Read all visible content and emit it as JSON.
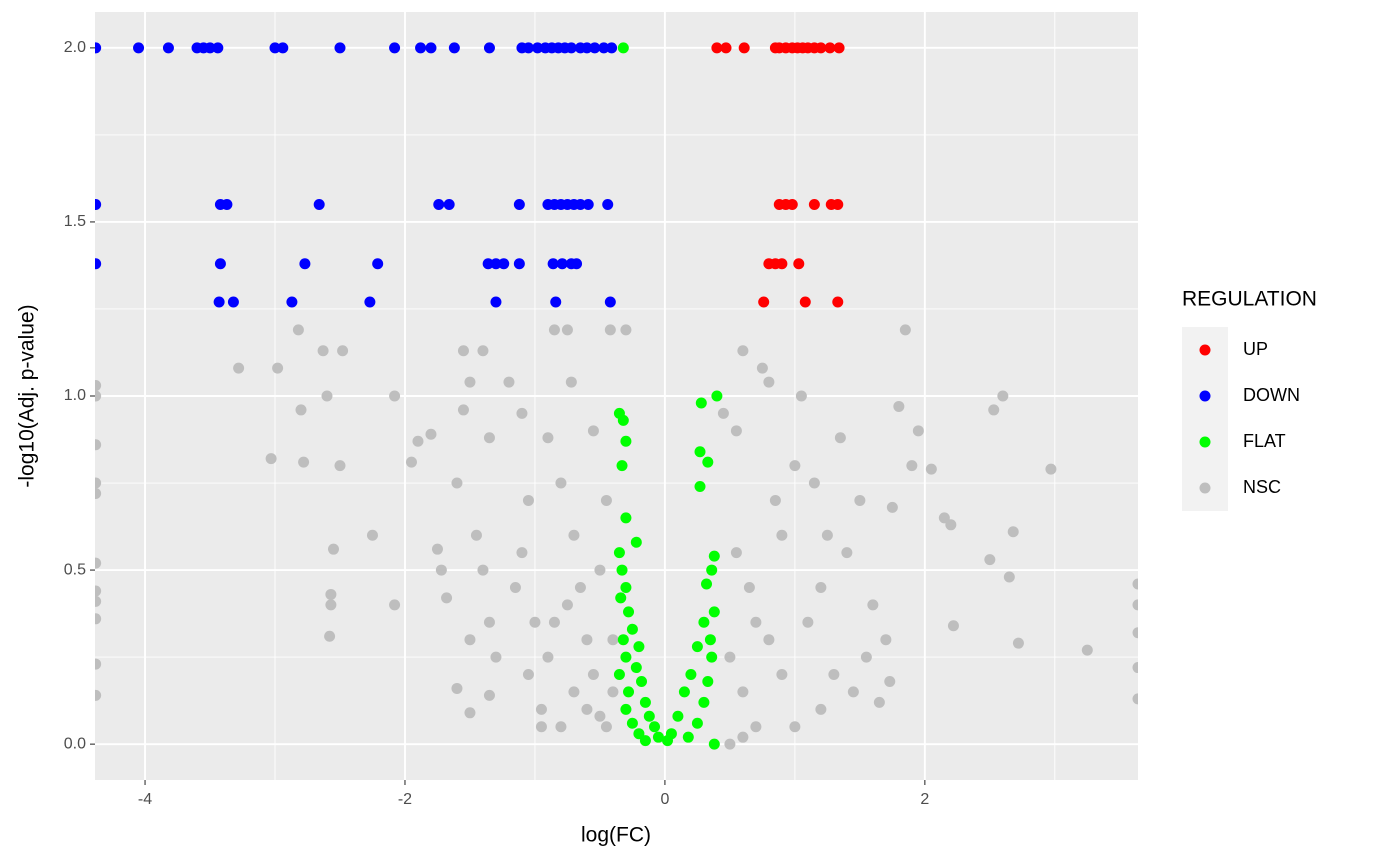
{
  "chart_data": {
    "type": "scatter",
    "x_label": "log(FC)",
    "y_label": "-log10(Adj. p-value)",
    "legend_title": "REGULATION",
    "xlim": [
      -4.385,
      3.64
    ],
    "ylim": [
      -0.103,
      2.103
    ],
    "xticks": [
      -4,
      -2,
      0,
      2
    ],
    "yticks": [
      {
        "value": 0,
        "label": "0.0"
      },
      0.5,
      {
        "value": 1,
        "label": "1.0"
      },
      1.5,
      {
        "value": 2,
        "label": "2.0"
      }
    ],
    "grid": true,
    "legend_position": "right",
    "series": [
      {
        "name": "UP",
        "color": "#ff0000",
        "x": [
          0.4,
          0.47,
          0.61,
          0.85,
          0.88,
          0.93,
          0.98,
          1.02,
          1.06,
          1.1,
          1.15,
          1.2,
          1.27,
          1.34,
          0.88,
          0.93,
          0.98,
          1.15,
          1.28,
          1.33,
          0.8,
          0.85,
          0.9,
          1.03,
          0.76,
          1.08,
          1.33
        ],
        "values": [
          2,
          2,
          2,
          2,
          2,
          2,
          2,
          2,
          2,
          2,
          2,
          2,
          2,
          2,
          1.55,
          1.55,
          1.55,
          1.55,
          1.55,
          1.55,
          1.38,
          1.38,
          1.38,
          1.38,
          1.27,
          1.27,
          1.27
        ]
      },
      {
        "name": "DOWN",
        "color": "#0000ff",
        "x": [
          -4.38,
          -4.05,
          -3.82,
          -3.6,
          -3.55,
          -3.5,
          -3.44,
          -3.0,
          -2.94,
          -2.5,
          -2.08,
          -1.88,
          -1.8,
          -1.62,
          -1.35,
          -1.1,
          -1.05,
          -0.98,
          -0.92,
          -0.87,
          -0.82,
          -0.77,
          -0.72,
          -0.65,
          -0.6,
          -0.54,
          -0.47,
          -0.41,
          -4.38,
          -3.42,
          -3.37,
          -2.66,
          -1.74,
          -1.66,
          -1.12,
          -0.9,
          -0.85,
          -0.8,
          -0.75,
          -0.7,
          -0.65,
          -0.59,
          -0.44,
          -4.38,
          -3.42,
          -2.77,
          -2.21,
          -1.36,
          -1.3,
          -1.24,
          -1.12,
          -0.86,
          -0.79,
          -0.72,
          -0.68,
          -3.43,
          -3.32,
          -2.87,
          -2.27,
          -1.3,
          -0.84,
          -0.42
        ],
        "values": [
          2,
          2,
          2,
          2,
          2,
          2,
          2,
          2,
          2,
          2,
          2,
          2,
          2,
          2,
          2,
          2,
          2,
          2,
          2,
          2,
          2,
          2,
          2,
          2,
          2,
          2,
          2,
          2,
          1.55,
          1.55,
          1.55,
          1.55,
          1.55,
          1.55,
          1.55,
          1.55,
          1.55,
          1.55,
          1.55,
          1.55,
          1.55,
          1.55,
          1.55,
          1.38,
          1.38,
          1.38,
          1.38,
          1.38,
          1.38,
          1.38,
          1.38,
          1.38,
          1.38,
          1.38,
          1.38,
          1.27,
          1.27,
          1.27,
          1.27,
          1.27,
          1.27,
          1.27
        ]
      },
      {
        "name": "FLAT",
        "color": "#00ff00",
        "x": [
          -0.32,
          -0.35,
          -0.32,
          -0.3,
          -0.33,
          -0.3,
          -0.22,
          -0.35,
          -0.33,
          -0.3,
          -0.34,
          -0.28,
          -0.25,
          -0.32,
          -0.2,
          -0.3,
          -0.22,
          -0.35,
          -0.18,
          -0.28,
          -0.15,
          -0.3,
          -0.12,
          -0.25,
          -0.08,
          -0.2,
          -0.05,
          -0.15,
          0.4,
          0.28,
          0.27,
          0.33,
          0.27,
          0.38,
          0.36,
          0.32,
          0.38,
          0.3,
          0.35,
          0.25,
          0.36,
          0.2,
          0.33,
          0.15,
          0.3,
          0.1,
          0.25,
          0.05,
          0.18,
          0.38,
          0.02
        ],
        "values": [
          2,
          0.95,
          0.93,
          0.87,
          0.8,
          0.65,
          0.58,
          0.55,
          0.5,
          0.45,
          0.42,
          0.38,
          0.33,
          0.3,
          0.28,
          0.25,
          0.22,
          0.2,
          0.18,
          0.15,
          0.12,
          0.1,
          0.08,
          0.06,
          0.05,
          0.03,
          0.02,
          0.01,
          1.0,
          0.98,
          0.84,
          0.81,
          0.74,
          0.54,
          0.5,
          0.46,
          0.38,
          0.35,
          0.3,
          0.28,
          0.25,
          0.2,
          0.18,
          0.15,
          0.12,
          0.08,
          0.06,
          0.03,
          0.02,
          0,
          0.01
        ]
      },
      {
        "name": "NSC",
        "color": "#bebebe",
        "x": [
          -4.38,
          -4.38,
          -4.38,
          -4.38,
          -4.38,
          -4.38,
          -4.38,
          -4.38,
          -4.38,
          -4.38,
          -4.38,
          -3.28,
          -3.03,
          -2.98,
          -2.82,
          -2.8,
          -2.78,
          -2.63,
          -2.6,
          -2.48,
          -2.5,
          -2.25,
          -2.55,
          -2.57,
          -2.57,
          -2.58,
          -2.08,
          -2.08,
          -1.95,
          -1.9,
          -1.8,
          -1.75,
          -1.72,
          -1.68,
          -1.6,
          -1.55,
          -1.5,
          -1.55,
          -1.4,
          -1.35,
          -1.45,
          -1.4,
          -1.35,
          -1.3,
          -1.5,
          -1.6,
          -1.35,
          -1.5,
          -1.2,
          -1.1,
          -1.05,
          -1.1,
          -1.15,
          -1.0,
          -1.05,
          -0.95,
          -0.9,
          -0.85,
          -0.75,
          -0.72,
          -0.8,
          -0.7,
          -0.65,
          -0.75,
          -0.6,
          -0.55,
          -0.7,
          -0.5,
          -0.45,
          -0.6,
          -0.5,
          -0.45,
          -0.42,
          -0.55,
          -0.85,
          -0.9,
          -0.8,
          0.45,
          0.55,
          0.6,
          0.65,
          0.7,
          0.75,
          0.8,
          0.85,
          0.9,
          0.55,
          0.5,
          0.6,
          0.7,
          0.8,
          0.9,
          1.0,
          1.05,
          1.15,
          1.2,
          1.1,
          1.25,
          1.3,
          1.35,
          1.4,
          1.45,
          1.5,
          1.6,
          1.7,
          1.75,
          1.8,
          1.85,
          1.9,
          1.95,
          2.05,
          2.15,
          2.2,
          2.22,
          2.5,
          2.53,
          2.6,
          2.65,
          2.68,
          2.72,
          2.97,
          3.25,
          3.64,
          3.64,
          3.64,
          3.64,
          3.64,
          1.0,
          1.2,
          0.5,
          0.6,
          -0.3,
          -0.95,
          -0.4,
          -0.4,
          1.55,
          1.65,
          1.73
        ],
        "values": [
          1.03,
          1.0,
          0.86,
          0.75,
          0.72,
          0.52,
          0.44,
          0.41,
          0.36,
          0.23,
          0.14,
          1.08,
          0.82,
          1.08,
          1.19,
          0.96,
          0.81,
          1.13,
          1.0,
          1.13,
          0.8,
          0.6,
          0.56,
          0.43,
          0.4,
          0.31,
          1.0,
          0.4,
          0.81,
          0.87,
          0.89,
          0.56,
          0.5,
          0.42,
          0.75,
          0.96,
          1.04,
          1.13,
          1.13,
          0.88,
          0.6,
          0.5,
          0.35,
          0.25,
          0.3,
          0.16,
          0.14,
          0.09,
          1.04,
          0.95,
          0.7,
          0.55,
          0.45,
          0.35,
          0.2,
          0.1,
          0.88,
          1.19,
          1.19,
          1.04,
          0.75,
          0.6,
          0.45,
          0.4,
          0.3,
          0.2,
          0.15,
          0.08,
          0.05,
          0.1,
          0.5,
          0.7,
          1.19,
          0.9,
          0.35,
          0.25,
          0.05,
          0.95,
          0.9,
          1.13,
          0.45,
          0.35,
          1.08,
          1.04,
          0.7,
          0.6,
          0.55,
          0.25,
          0.15,
          0.05,
          0.3,
          0.2,
          0.8,
          1.0,
          0.75,
          0.45,
          0.35,
          0.6,
          0.2,
          0.88,
          0.55,
          0.15,
          0.7,
          0.4,
          0.3,
          0.68,
          0.97,
          1.19,
          0.8,
          0.9,
          0.79,
          0.65,
          0.63,
          0.34,
          0.53,
          0.96,
          1.0,
          0.48,
          0.61,
          0.29,
          0.79,
          0.27,
          0.46,
          0.4,
          0.32,
          0.22,
          0.13,
          0.05,
          0.1,
          0.0,
          0.02,
          1.19,
          0.05,
          0.3,
          0.15,
          0.25,
          0.12,
          0.18
        ]
      }
    ]
  }
}
